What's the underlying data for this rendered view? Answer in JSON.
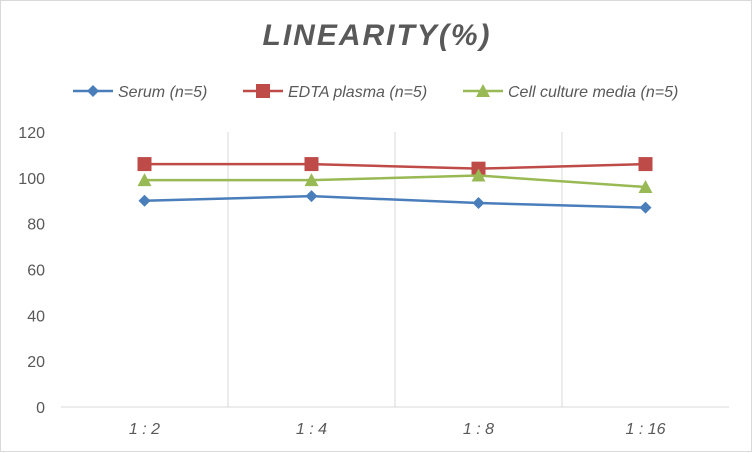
{
  "chart_data": {
    "type": "line",
    "title": "LINEARITY(%)",
    "categories": [
      "1:2",
      "1:4",
      "1:8",
      "1:16"
    ],
    "ylim": [
      0,
      120
    ],
    "yticks": [
      0,
      20,
      40,
      60,
      80,
      100,
      120
    ],
    "grid": "vertical",
    "legend_position": "top",
    "series": [
      {
        "name": "Serum (n=5)",
        "values": [
          90,
          92,
          89,
          87
        ],
        "color": "#4a7ebb",
        "marker": "diamond"
      },
      {
        "name": "EDTA plasma (n=5)",
        "values": [
          106,
          106,
          104,
          106
        ],
        "color": "#be4b48",
        "marker": "square"
      },
      {
        "name": "Cell culture media (n=5)",
        "values": [
          99,
          99,
          101,
          96
        ],
        "color": "#98b954",
        "marker": "triangle"
      }
    ]
  }
}
